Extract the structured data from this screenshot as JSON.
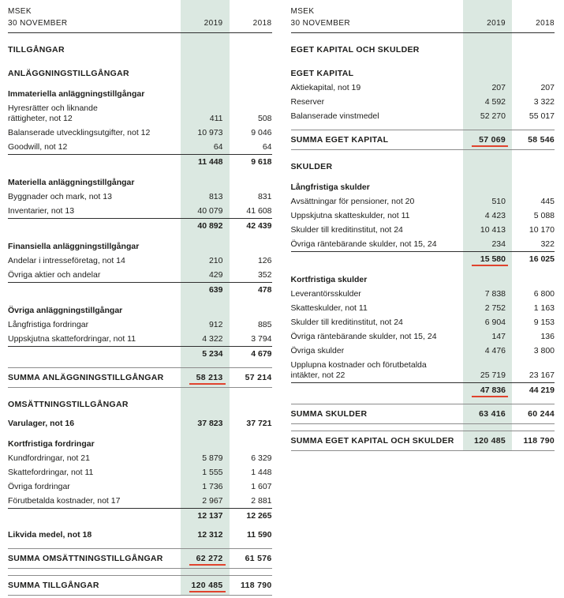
{
  "colors": {
    "highlight_2019_bg": "#dbe8e1",
    "red_underline": "#e0432e",
    "text": "#1d1d1b",
    "rule_gray": "#8c8c8c",
    "rule_dark": "#2f2f2f"
  },
  "left_table": {
    "unit": "MSEK",
    "date": "30 NOVEMBER",
    "years": [
      "2019",
      "2018"
    ],
    "rows": [
      {
        "type": "section",
        "label": "TILLGÅNGAR"
      },
      {
        "type": "section",
        "label": "ANLÄGGNINGSTILLGÅNGAR"
      },
      {
        "type": "group",
        "label": "Immateriella anläggningstillgångar"
      },
      {
        "type": "item",
        "label": "Hyresrätter och liknande\nrättigheter, not 12",
        "v2019": "411",
        "v2018": "508"
      },
      {
        "type": "item",
        "label": "Balanserade utvecklingsutgifter, not 12",
        "v2019": "10 973",
        "v2018": "9 046"
      },
      {
        "type": "item",
        "label": "Goodwill, not 12",
        "v2019": "64",
        "v2018": "64"
      },
      {
        "type": "subtotal",
        "v2019": "11 448",
        "v2018": "9 618"
      },
      {
        "type": "group",
        "label": "Materiella anläggningstillgångar"
      },
      {
        "type": "item",
        "label": "Byggnader och mark, not 13",
        "v2019": "813",
        "v2018": "831"
      },
      {
        "type": "item",
        "label": "Inventarier, not 13",
        "v2019": "40 079",
        "v2018": "41 608"
      },
      {
        "type": "subtotal",
        "v2019": "40 892",
        "v2018": "42 439"
      },
      {
        "type": "group",
        "label": "Finansiella anläggningstillgångar"
      },
      {
        "type": "item",
        "label": "Andelar i intresseföretag, not 14",
        "v2019": "210",
        "v2018": "126"
      },
      {
        "type": "item",
        "label": "Övriga aktier och andelar",
        "v2019": "429",
        "v2018": "352"
      },
      {
        "type": "subtotal",
        "v2019": "639",
        "v2018": "478"
      },
      {
        "type": "group",
        "label": "Övriga anläggningstillgångar"
      },
      {
        "type": "item",
        "label": "Långfristiga fordringar",
        "v2019": "912",
        "v2018": "885"
      },
      {
        "type": "item",
        "label": "Uppskjutna skattefordringar, not 11",
        "v2019": "4 322",
        "v2018": "3 794"
      },
      {
        "type": "subtotal",
        "v2019": "5 234",
        "v2018": "4 679"
      },
      {
        "type": "total",
        "label": "SUMMA ANLÄGGNINGSTILLGÅNGAR",
        "v2019": "58 213",
        "v2018": "57 214",
        "red": true
      },
      {
        "type": "section",
        "label": "OMSÄTTNINGSTILLGÅNGAR"
      },
      {
        "type": "item_bold",
        "label": "Varulager, not 16",
        "v2019": "37 823",
        "v2018": "37 721"
      },
      {
        "type": "group",
        "label": "Kortfristiga fordringar"
      },
      {
        "type": "item",
        "label": "Kundfordringar, not 21",
        "v2019": "5 879",
        "v2018": "6 329"
      },
      {
        "type": "item",
        "label": "Skattefordringar, not 11",
        "v2019": "1 555",
        "v2018": "1 448"
      },
      {
        "type": "item",
        "label": "Övriga fordringar",
        "v2019": "1 736",
        "v2018": "1 607"
      },
      {
        "type": "item",
        "label": "Förutbetalda kostnader, not 17",
        "v2019": "2 967",
        "v2018": "2 881"
      },
      {
        "type": "subtotal",
        "v2019": "12 137",
        "v2018": "12 265"
      },
      {
        "type": "item_bold",
        "label": "Likvida medel, not 18",
        "v2019": "12 312",
        "v2018": "11 590"
      },
      {
        "type": "total",
        "label": "SUMMA OMSÄTTNINGSTILLGÅNGAR",
        "v2019": "62 272",
        "v2018": "61 576",
        "red": true
      },
      {
        "type": "total",
        "label": "SUMMA TILLGÅNGAR",
        "v2019": "120 485",
        "v2018": "118 790",
        "red": true
      }
    ]
  },
  "right_table": {
    "unit": "MSEK",
    "date": "30 NOVEMBER",
    "years": [
      "2019",
      "2018"
    ],
    "rows": [
      {
        "type": "section",
        "label": "EGET KAPITAL OCH SKULDER"
      },
      {
        "type": "section",
        "label": "EGET KAPITAL"
      },
      {
        "type": "item",
        "label": "Aktiekapital, not 19",
        "v2019": "207",
        "v2018": "207"
      },
      {
        "type": "item",
        "label": "Reserver",
        "v2019": "4 592",
        "v2018": "3 322"
      },
      {
        "type": "item",
        "label": "Balanserade vinstmedel",
        "v2019": "52 270",
        "v2018": "55 017"
      },
      {
        "type": "total",
        "label": "SUMMA EGET KAPITAL",
        "v2019": "57 069",
        "v2018": "58 546",
        "red": true
      },
      {
        "type": "section",
        "label": "SKULDER"
      },
      {
        "type": "group",
        "label": "Långfristiga skulder"
      },
      {
        "type": "item",
        "label": "Avsättningar för pensioner, not 20",
        "v2019": "510",
        "v2018": "445"
      },
      {
        "type": "item",
        "label": "Uppskjutna skatteskulder, not 11",
        "v2019": "4 423",
        "v2018": "5 088"
      },
      {
        "type": "item",
        "label": "Skulder till kreditinstitut, not 24",
        "v2019": "10 413",
        "v2018": "10 170"
      },
      {
        "type": "item",
        "label": "Övriga räntebärande skulder, not 15, 24",
        "v2019": "234",
        "v2018": "322"
      },
      {
        "type": "subtotal",
        "v2019": "15 580",
        "v2018": "16 025",
        "red": true
      },
      {
        "type": "group",
        "label": "Kortfristiga skulder"
      },
      {
        "type": "item",
        "label": "Leverantörsskulder",
        "v2019": "7 838",
        "v2018": "6 800"
      },
      {
        "type": "item",
        "label": "Skatteskulder, not 11",
        "v2019": "2 752",
        "v2018": "1 163"
      },
      {
        "type": "item",
        "label": "Skulder till kreditinstitut, not 24",
        "v2019": "6 904",
        "v2018": "9 153"
      },
      {
        "type": "item",
        "label": "Övriga räntebärande skulder, not 15, 24",
        "v2019": "147",
        "v2018": "136"
      },
      {
        "type": "item",
        "label": "Övriga skulder",
        "v2019": "4 476",
        "v2018": "3 800"
      },
      {
        "type": "item",
        "label": "Upplupna kostnader och förutbetalda\nintäkter, not 22",
        "v2019": "25 719",
        "v2018": "23 167"
      },
      {
        "type": "subtotal",
        "v2019": "47 836",
        "v2018": "44 219",
        "red": true
      },
      {
        "type": "total",
        "label": "SUMMA SKULDER",
        "v2019": "63 416",
        "v2018": "60 244"
      },
      {
        "type": "total",
        "label": "SUMMA EGET KAPITAL OCH SKULDER",
        "v2019": "120 485",
        "v2018": "118 790"
      }
    ]
  }
}
